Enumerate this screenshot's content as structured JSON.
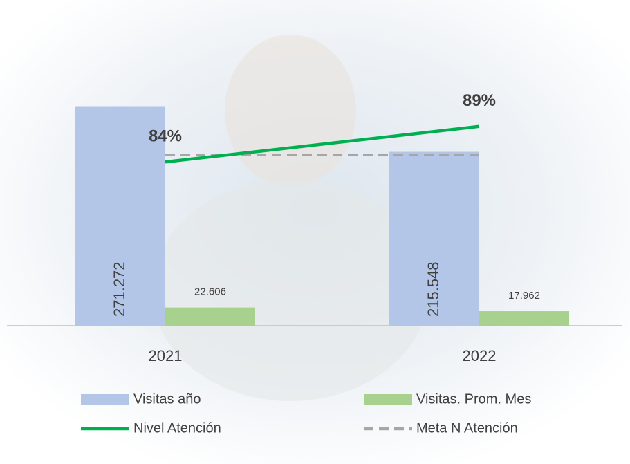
{
  "chart_data": {
    "type": "bar",
    "categories": [
      "2021",
      "2022"
    ],
    "series": [
      {
        "name": "Visitas año",
        "type": "bar",
        "color": "#b4c6e7",
        "values": [
          271272,
          215548
        ],
        "value_labels": [
          "271.272",
          "215.548"
        ]
      },
      {
        "name": "Visitas. Prom. Mes",
        "type": "bar",
        "color": "#a9d18e",
        "values": [
          22606,
          17962
        ],
        "value_labels": [
          "22.606",
          "17.962"
        ]
      },
      {
        "name": "Nivel Atención",
        "type": "line",
        "axis": "y2",
        "color": "#00b050",
        "values": [
          84,
          89
        ],
        "value_labels": [
          "84%",
          "89%"
        ]
      },
      {
        "name": "Meta N Atención",
        "type": "line",
        "axis": "y2",
        "color": "#a6a6a6",
        "dashed": true,
        "values": [
          85,
          85
        ]
      }
    ],
    "ylim": [
      0,
      300000
    ],
    "y2lim": [
      61,
      95
    ],
    "legend": "bottom"
  }
}
